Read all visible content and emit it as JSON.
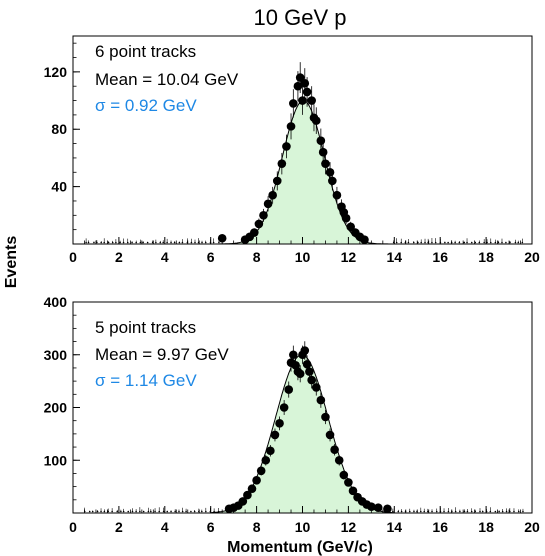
{
  "chart_data": {
    "type": "scatter",
    "title": "10 GeV p",
    "xlabel": "Momentum (GeV/c)",
    "ylabel": "Events",
    "sigma_color": "#1e88e5",
    "fill_color": "#d8f5d8",
    "panels": [
      {
        "label": "6 point tracks",
        "mean_text": "Mean = 10.04 GeV",
        "sigma_text": "σ = 0.92 GeV",
        "xlim": [
          0,
          20
        ],
        "ylim": [
          0,
          145
        ],
        "xticks": [
          "0",
          "2",
          "4",
          "6",
          "8",
          "10",
          "12",
          "14",
          "16",
          "18",
          "20"
        ],
        "yticks": [
          {
            "v": 40,
            "label": "40"
          },
          {
            "v": 80,
            "label": "80"
          },
          {
            "v": 120,
            "label": "120"
          }
        ],
        "fit": {
          "mean": 10.04,
          "sigma": 0.92,
          "amplitude": 100
        },
        "points": [
          {
            "x": 6.5,
            "y": 4
          },
          {
            "x": 7.5,
            "y": 3
          },
          {
            "x": 7.7,
            "y": 5
          },
          {
            "x": 7.9,
            "y": 8
          },
          {
            "x": 8.1,
            "y": 14
          },
          {
            "x": 8.3,
            "y": 20
          },
          {
            "x": 8.5,
            "y": 28
          },
          {
            "x": 8.7,
            "y": 34
          },
          {
            "x": 8.9,
            "y": 44
          },
          {
            "x": 9.1,
            "y": 56
          },
          {
            "x": 9.3,
            "y": 68
          },
          {
            "x": 9.5,
            "y": 82
          },
          {
            "x": 9.6,
            "y": 98
          },
          {
            "x": 9.8,
            "y": 110
          },
          {
            "x": 9.9,
            "y": 116
          },
          {
            "x": 10.0,
            "y": 100
          },
          {
            "x": 10.1,
            "y": 112
          },
          {
            "x": 10.2,
            "y": 106
          },
          {
            "x": 10.4,
            "y": 100
          },
          {
            "x": 10.5,
            "y": 88
          },
          {
            "x": 10.6,
            "y": 86
          },
          {
            "x": 10.8,
            "y": 72
          },
          {
            "x": 10.9,
            "y": 64
          },
          {
            "x": 11.0,
            "y": 56
          },
          {
            "x": 11.2,
            "y": 50
          },
          {
            "x": 11.3,
            "y": 44
          },
          {
            "x": 11.5,
            "y": 34
          },
          {
            "x": 11.7,
            "y": 26
          },
          {
            "x": 11.8,
            "y": 22
          },
          {
            "x": 11.9,
            "y": 18
          },
          {
            "x": 12.1,
            "y": 12
          },
          {
            "x": 12.3,
            "y": 8
          },
          {
            "x": 12.5,
            "y": 5
          },
          {
            "x": 12.7,
            "y": 3
          }
        ]
      },
      {
        "label": "5 point tracks",
        "mean_text": "Mean = 9.97 GeV",
        "sigma_text": "σ = 1.14 GeV",
        "xlim": [
          0,
          20
        ],
        "ylim": [
          0,
          400
        ],
        "xticks": [
          "0",
          "2",
          "4",
          "6",
          "8",
          "10",
          "12",
          "14",
          "16",
          "18",
          "20"
        ],
        "yticks": [
          {
            "v": 100,
            "label": "100"
          },
          {
            "v": 200,
            "label": "200"
          },
          {
            "v": 300,
            "label": "300"
          },
          {
            "v": 400,
            "label": "400"
          }
        ],
        "fit": {
          "mean": 9.97,
          "sigma": 1.14,
          "amplitude": 300
        },
        "points": [
          {
            "x": 6.8,
            "y": 8
          },
          {
            "x": 7.0,
            "y": 10
          },
          {
            "x": 7.2,
            "y": 14
          },
          {
            "x": 7.4,
            "y": 22
          },
          {
            "x": 7.6,
            "y": 34
          },
          {
            "x": 7.8,
            "y": 46
          },
          {
            "x": 8.0,
            "y": 62
          },
          {
            "x": 8.2,
            "y": 80
          },
          {
            "x": 8.4,
            "y": 100
          },
          {
            "x": 8.6,
            "y": 118
          },
          {
            "x": 8.8,
            "y": 148
          },
          {
            "x": 9.0,
            "y": 170
          },
          {
            "x": 9.2,
            "y": 200
          },
          {
            "x": 9.4,
            "y": 234
          },
          {
            "x": 9.5,
            "y": 285
          },
          {
            "x": 9.6,
            "y": 300
          },
          {
            "x": 9.7,
            "y": 280
          },
          {
            "x": 9.8,
            "y": 268
          },
          {
            "x": 9.9,
            "y": 264
          },
          {
            "x": 10.0,
            "y": 300
          },
          {
            "x": 10.1,
            "y": 308
          },
          {
            "x": 10.2,
            "y": 282
          },
          {
            "x": 10.3,
            "y": 268
          },
          {
            "x": 10.4,
            "y": 252
          },
          {
            "x": 10.6,
            "y": 238
          },
          {
            "x": 10.8,
            "y": 214
          },
          {
            "x": 11.0,
            "y": 182
          },
          {
            "x": 11.2,
            "y": 148
          },
          {
            "x": 11.4,
            "y": 120
          },
          {
            "x": 11.6,
            "y": 100
          },
          {
            "x": 11.8,
            "y": 72
          },
          {
            "x": 12.0,
            "y": 58
          },
          {
            "x": 12.2,
            "y": 42
          },
          {
            "x": 12.4,
            "y": 30
          },
          {
            "x": 12.6,
            "y": 22
          },
          {
            "x": 12.8,
            "y": 16
          },
          {
            "x": 13.0,
            "y": 12
          },
          {
            "x": 13.3,
            "y": 10
          },
          {
            "x": 13.7,
            "y": 8
          }
        ]
      }
    ]
  }
}
